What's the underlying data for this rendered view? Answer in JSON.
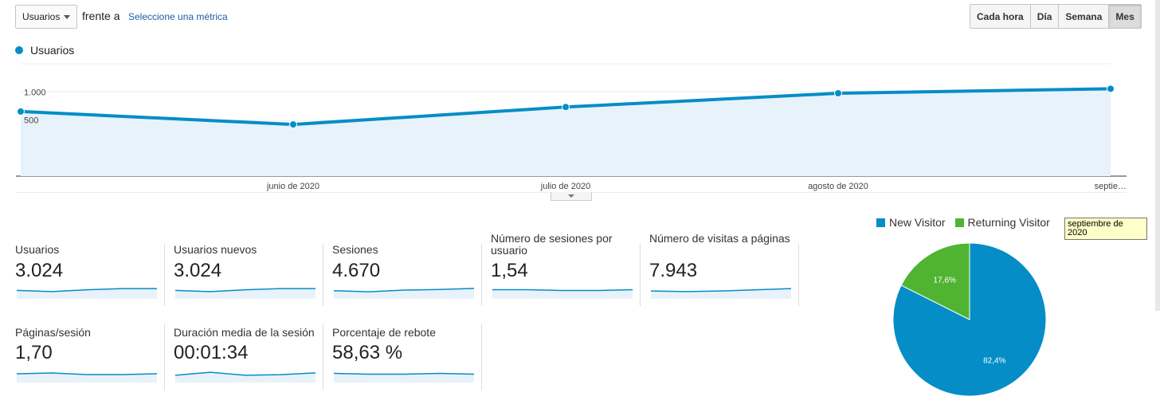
{
  "controls": {
    "metric_select": "Usuarios",
    "vs_text": "frente a",
    "select_metric_link": "Seleccione una métrica",
    "periods": [
      {
        "label": "Cada hora",
        "active": false
      },
      {
        "label": "Día",
        "active": false
      },
      {
        "label": "Semana",
        "active": false
      },
      {
        "label": "Mes",
        "active": true
      }
    ]
  },
  "colors": {
    "accent": "#058dc7",
    "new_visitor": "#058dc7",
    "returning_visitor": "#50b432",
    "area_fill": "#e8f2fa"
  },
  "chart_data": [
    {
      "type": "line",
      "series": [
        {
          "name": "Usuarios",
          "values": [
            650,
            420,
            730,
            975,
            1055
          ]
        }
      ],
      "x_labels": [
        "junio de 2020",
        "julio de 2020",
        "agosto de 2020",
        "septie…"
      ],
      "y_ticks": [
        "1.000",
        "500"
      ],
      "ylim": [
        -500,
        1500
      ],
      "grid": true
    },
    {
      "type": "pie",
      "legend": [
        "New Visitor",
        "Returning Visitor"
      ],
      "values": [
        82.4,
        17.6
      ],
      "labels": [
        "82,4%",
        "17,6%"
      ],
      "legend_position": "top"
    }
  ],
  "tiles": [
    {
      "label": "Usuarios",
      "value": "3.024",
      "spark": [
        4,
        2,
        5,
        7,
        7
      ]
    },
    {
      "label": "Usuarios nuevos",
      "value": "3.024",
      "spark": [
        4,
        2,
        5,
        7,
        7
      ]
    },
    {
      "label": "Sesiones",
      "value": "4.670",
      "spark": [
        4,
        2,
        5,
        6,
        8
      ]
    },
    {
      "label": "Número de sesiones por usuario",
      "value": "1,54",
      "spark": [
        5,
        5,
        4,
        4,
        5
      ]
    },
    {
      "label": "Número de visitas a páginas",
      "value": "7.943",
      "spark": [
        4,
        3,
        4,
        6,
        8
      ]
    },
    {
      "label": "Páginas/sesión",
      "value": "1,70",
      "spark": [
        5,
        6,
        4,
        4,
        5
      ]
    },
    {
      "label": "Duración media de la sesión",
      "value": "00:01:34",
      "spark": [
        3,
        8,
        3,
        4,
        7
      ]
    },
    {
      "label": "Porcentaje de rebote",
      "value": "58,63 %",
      "spark": [
        5,
        4,
        4,
        5,
        4
      ]
    }
  ],
  "tooltip": {
    "text": "septiembre de 2020"
  }
}
